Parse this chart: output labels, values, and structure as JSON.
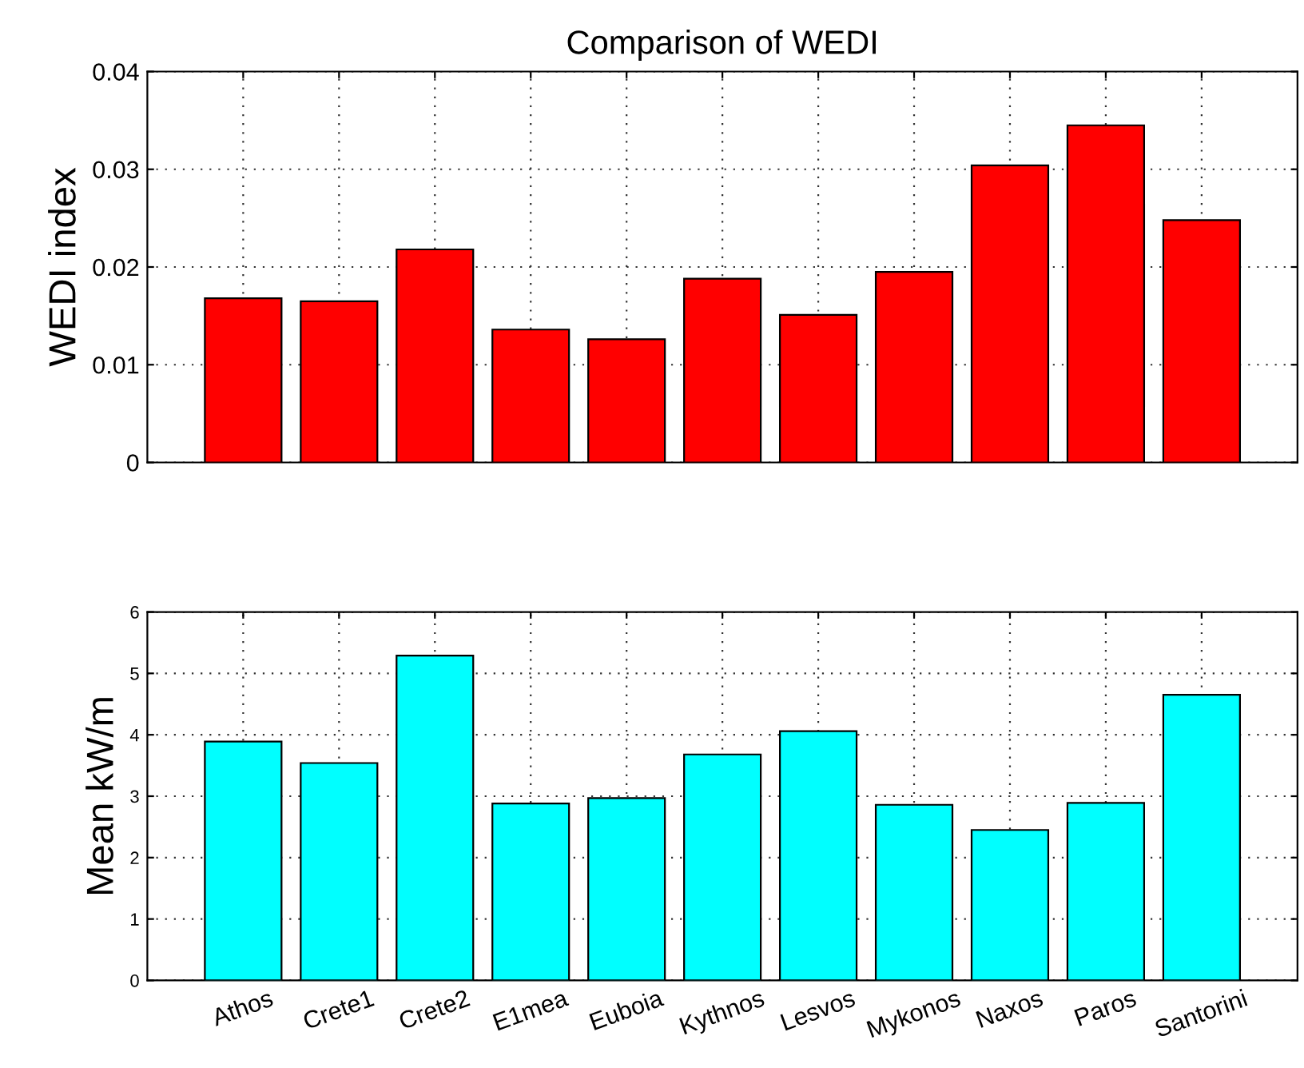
{
  "chart_data": [
    {
      "type": "bar",
      "title": "Comparison of WEDI",
      "ylabel": "WEDI index",
      "categories": [
        null,
        null,
        null,
        null,
        null,
        null,
        null,
        null,
        null,
        null,
        null
      ],
      "values": [
        0.0168,
        0.0165,
        0.0218,
        0.0136,
        0.0126,
        0.0188,
        0.0151,
        0.0195,
        0.0304,
        0.0345,
        0.0248
      ],
      "color": "#ff0000",
      "ylim": [
        0,
        0.04
      ],
      "yticks": [
        0,
        0.01,
        0.02,
        0.03,
        0.04
      ],
      "grid": true,
      "tick_labels": "y"
    },
    {
      "type": "bar",
      "ylabel": "Mean kW/m",
      "categories": [
        "Athos",
        "Crete1",
        "Crete2",
        "E1mea",
        "Euboia",
        "Kythnos",
        "Lesvos",
        "Mykonos",
        "Naxos",
        "Paros",
        "Santorini"
      ],
      "values": [
        3.89,
        3.54,
        5.29,
        2.88,
        2.97,
        3.68,
        4.06,
        2.86,
        2.45,
        2.89,
        4.65
      ],
      "color": "#00ffff",
      "ylim": [
        0,
        6
      ],
      "yticks": [
        0,
        1,
        2,
        3,
        4,
        5,
        6
      ],
      "grid": true
    }
  ]
}
